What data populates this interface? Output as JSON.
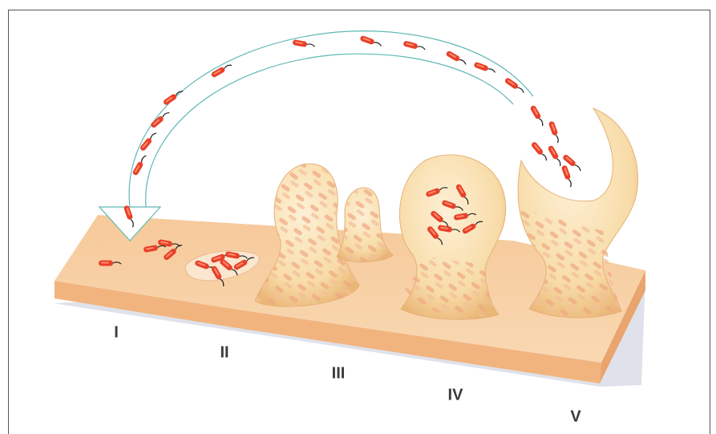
{
  "stages": [
    {
      "label": "I"
    },
    {
      "label": "II"
    },
    {
      "label": "III"
    },
    {
      "label": "IV"
    },
    {
      "label": "V"
    }
  ]
}
